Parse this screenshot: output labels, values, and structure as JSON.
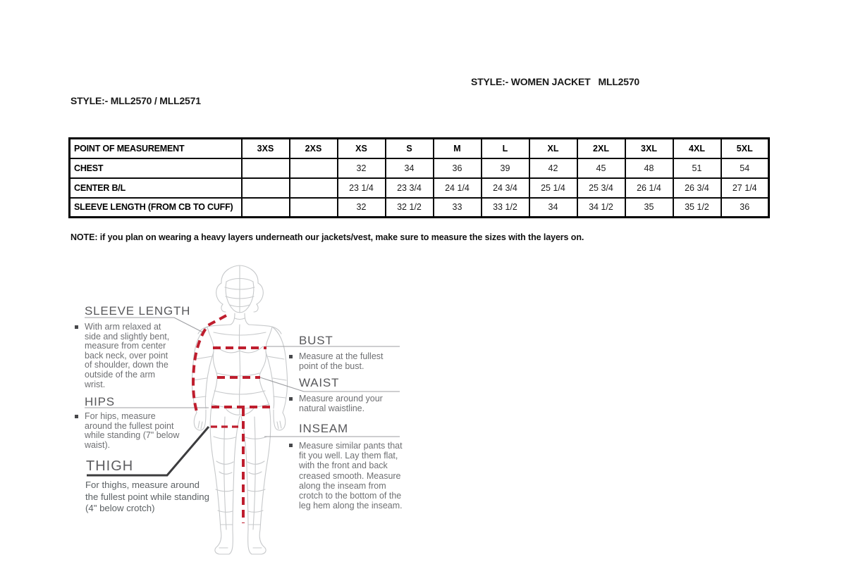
{
  "page": {
    "style_header_right": "STYLE:- WOMEN JACKET   MLL2570",
    "style_header_left": "STYLE:- MLL2570 / MLL2571",
    "note": "NOTE: if you plan on wearing a heavy layers underneath our jackets/vest, make sure to measure the sizes with the layers on."
  },
  "size_table": {
    "columns": [
      "POINT OF MEASUREMENT",
      "3XS",
      "2XS",
      "XS",
      "S",
      "M",
      "L",
      "XL",
      "2XL",
      "3XL",
      "4XL",
      "5XL"
    ],
    "rows": [
      {
        "label": "CHEST",
        "values": [
          "",
          "",
          "32",
          "34",
          "36",
          "39",
          "42",
          "45",
          "48",
          "51",
          "54"
        ]
      },
      {
        "label": "CENTER B/L",
        "values": [
          "",
          "",
          "23 1/4",
          "23 3/4",
          "24 1/4",
          "24 3/4",
          "25 1/4",
          "25 3/4",
          "26 1/4",
          "26 3/4",
          "27 1/4"
        ]
      },
      {
        "label": "SLEEVE LENGTH (FROM CB TO CUFF)",
        "values": [
          "",
          "",
          "32",
          "32 1/2",
          "33",
          "33 1/2",
          "34",
          "34 1/2",
          "35",
          "35 1/2",
          "36"
        ]
      }
    ]
  },
  "diagram": {
    "labels": {
      "sleeve_length": {
        "title": "SLEEVE LENGTH",
        "desc": "With arm relaxed at side and slightly bent, measure from center back neck, over point of shoulder, down the outside of the arm wrist."
      },
      "hips": {
        "title": "HIPS",
        "desc": "For hips, measure around the fullest point while standing (7\" below waist)."
      },
      "thigh": {
        "title": "THIGH",
        "desc": "For thighs, measure around the fullest point while standing (4\" below crotch)"
      },
      "bust": {
        "title": "BUST",
        "desc": "Measure at the fullest point of the bust."
      },
      "waist": {
        "title": "WAIST",
        "desc": "Measure around your natural waistline."
      },
      "inseam": {
        "title": "INSEAM",
        "desc": "Measure similar pants that fit you well. Lay them flat, with the front and back creased smooth. Measure along the inseam from crotch to the bottom of the leg hem along the inseam."
      }
    },
    "colors": {
      "measure_line": "#bf1e2e",
      "figure_line": "#c7c9cb",
      "leader_line": "#9d9ea2",
      "thigh_leader_line": "#3c3c3e",
      "title_text": "#58585b",
      "desc_text": "#6e6f72"
    }
  }
}
